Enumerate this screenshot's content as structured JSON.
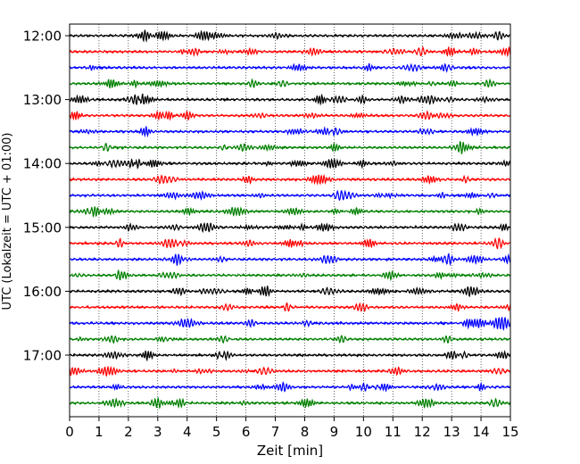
{
  "chart_data": {
    "type": "line",
    "title": "",
    "xlabel": "Zeit  [min]",
    "ylabel": "UTC (Lokalzeit = UTC + 01:00)",
    "xlim": [
      0,
      15
    ],
    "xticks": [
      0,
      1,
      2,
      3,
      4,
      5,
      6,
      7,
      8,
      9,
      10,
      11,
      12,
      13,
      14,
      15
    ],
    "y_tick_labels": [
      "12:00",
      "13:00",
      "14:00",
      "15:00",
      "16:00",
      "17:00"
    ],
    "y_tick_trace_index": [
      0,
      4,
      8,
      12,
      16,
      20
    ],
    "trace_minutes": 15,
    "trace_count": 24,
    "start_time": "12:00",
    "color_cycle": [
      "#000000",
      "#ff0000",
      "#0000ff",
      "#008000"
    ],
    "vertical_grid": "dotted",
    "signal": "seismogram (helicorder); continuous low-amplitude wiggle on every trace"
  }
}
